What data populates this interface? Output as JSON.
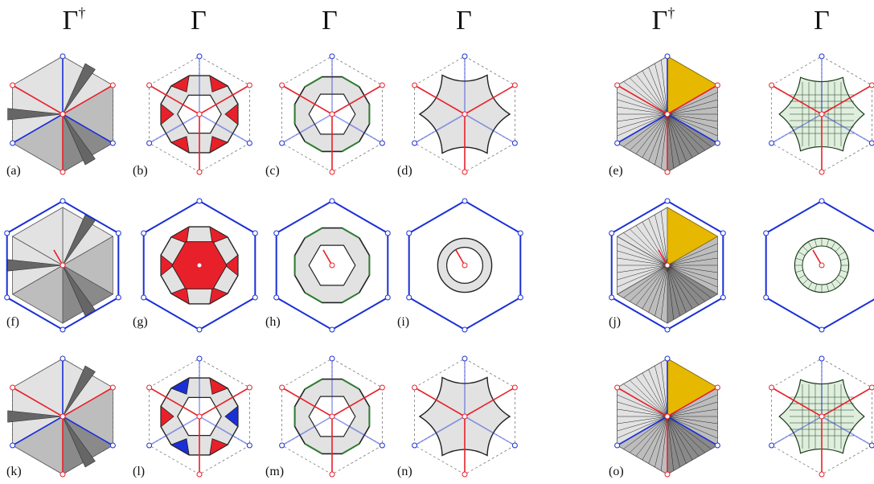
{
  "columns": [
    {
      "symbol": "Γ",
      "dagger": "†"
    },
    {
      "symbol": "Γ",
      "dagger": ""
    },
    {
      "symbol": "Γ",
      "dagger": ""
    },
    {
      "symbol": "Γ",
      "dagger": ""
    },
    {
      "symbol": "Γ",
      "dagger": "†"
    },
    {
      "symbol": "Γ",
      "dagger": ""
    }
  ],
  "panels": [
    {
      "label": "(a)",
      "row": 0,
      "col": 0,
      "kind": "dual",
      "frame": "lines"
    },
    {
      "label": "(b)",
      "row": 0,
      "col": 1,
      "kind": "faces",
      "frame": "lines"
    },
    {
      "label": "(c)",
      "row": 0,
      "col": 2,
      "kind": "ring",
      "frame": "lines"
    },
    {
      "label": "(d)",
      "row": 0,
      "col": 3,
      "kind": "smooth",
      "frame": "lines"
    },
    {
      "label": "(e)",
      "row": 0,
      "col": 4,
      "kind": "dual-fan",
      "frame": "lines"
    },
    {
      "label": "(f)",
      "row": 1,
      "col": 0,
      "kind": "dual",
      "frame": "hex"
    },
    {
      "label": "(g)",
      "row": 1,
      "col": 1,
      "kind": "faces",
      "frame": "hex"
    },
    {
      "label": "(h)",
      "row": 1,
      "col": 2,
      "kind": "ring",
      "frame": "hex"
    },
    {
      "label": "(i)",
      "row": 1,
      "col": 3,
      "kind": "smooth",
      "frame": "hex"
    },
    {
      "label": "(j)",
      "row": 1,
      "col": 4,
      "kind": "dual-fan",
      "frame": "hex"
    },
    {
      "label": "(k)",
      "row": 2,
      "col": 0,
      "kind": "dual",
      "frame": "lines"
    },
    {
      "label": "(l)",
      "row": 2,
      "col": 1,
      "kind": "faces",
      "frame": "lines"
    },
    {
      "label": "(m)",
      "row": 2,
      "col": 2,
      "kind": "ring",
      "frame": "lines"
    },
    {
      "label": "(n)",
      "row": 2,
      "col": 3,
      "kind": "smooth",
      "frame": "lines"
    },
    {
      "label": "(o)",
      "row": 2,
      "col": 4,
      "kind": "dual-fan",
      "frame": "lines"
    }
  ],
  "colors": {
    "red": "#e8202a",
    "blue": "#1b2fd6",
    "yellow": "#e6b800",
    "green": "#2e7d32",
    "mesh_fill": "#dfeedd",
    "gray_light": "#e2e2e2",
    "gray_mid": "#bdbdbd",
    "gray_dark": "#8a8a8a"
  }
}
